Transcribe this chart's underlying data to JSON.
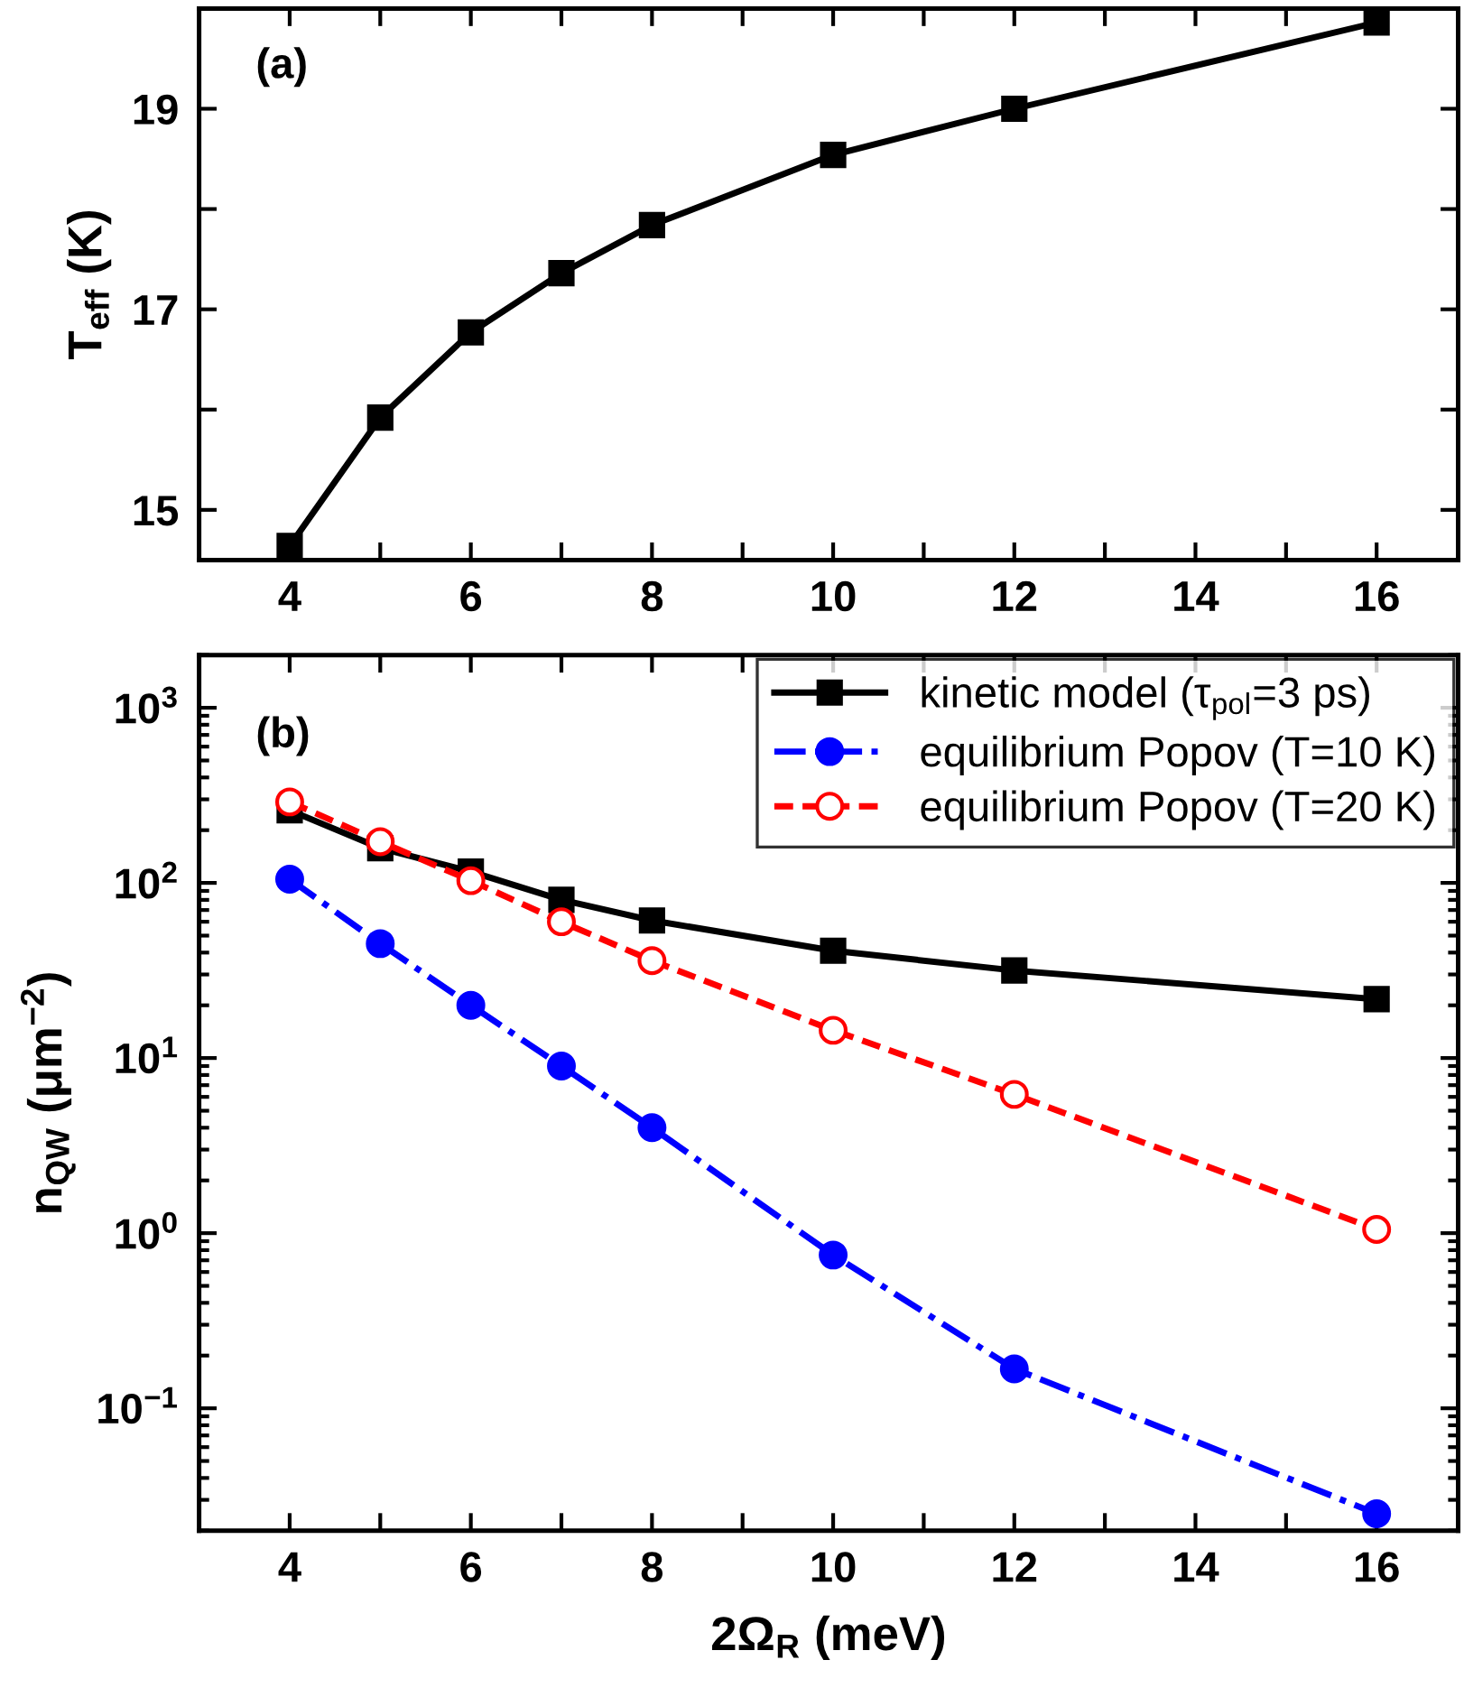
{
  "chart_data": [
    {
      "type": "line",
      "ylabel": "T$_{eff}$ (K)",
      "annotations": [
        "(a)"
      ],
      "x": [
        4,
        5,
        6,
        7,
        8,
        10,
        12,
        16
      ],
      "series": [
        {
          "color": "#000000",
          "marker": "square",
          "line_style": "solid",
          "values": [
            14.64,
            15.92,
            16.77,
            17.36,
            17.84,
            18.54,
            19.0,
            19.86
          ]
        }
      ],
      "xlim": [
        3,
        16.9
      ],
      "xticks": [
        4,
        {
          "value": 5,
          "label": null
        },
        6,
        {
          "value": 7,
          "label": null
        },
        8,
        {
          "value": 9,
          "label": null
        },
        10,
        {
          "value": 11,
          "label": null
        },
        12,
        {
          "value": 13,
          "label": null
        },
        14,
        {
          "value": 15,
          "label": null
        },
        16
      ],
      "ylim": [
        14.5,
        20
      ],
      "yticks": [
        15,
        {
          "value": 16,
          "label": null
        },
        17,
        {
          "value": 18,
          "label": null
        },
        19
      ],
      "grid": false,
      "legend": false
    },
    {
      "type": "line",
      "xlabel": "2Ω$_{R}$ (meV)",
      "ylabel": "n$_{QW}$ (μm$^{−2}$)",
      "annotations": [
        "(b)"
      ],
      "x": [
        4,
        5,
        6,
        7,
        8,
        10,
        12,
        16
      ],
      "series": [
        {
          "name": "kinetic model (τ$_{pol}$=3 ps)",
          "color": "#000000",
          "marker": "square",
          "line_style": "solid",
          "values": [
            260,
            158,
            116,
            80,
            61,
            41,
            31.6,
            21.7
          ]
        },
        {
          "name": "equilibrium Popov (T=10 K)",
          "color": "#0000ff",
          "marker": "circle",
          "line_style": "dashdot",
          "values": [
            105,
            45,
            20,
            9,
            4.0,
            0.75,
            0.168,
            0.025
          ]
        },
        {
          "name": "equilibrium Popov (T=20 K)",
          "color": "#ff0000",
          "marker": "circle",
          "line_style": "dashed",
          "values": [
            290,
            172,
            103,
            60,
            36,
            14.4,
            6.2,
            1.05
          ]
        }
      ],
      "log": "y",
      "xlim": [
        3,
        16.9
      ],
      "xticks": [
        4,
        {
          "value": 5,
          "label": null
        },
        6,
        {
          "value": 7,
          "label": null
        },
        8,
        {
          "value": 9,
          "label": null
        },
        10,
        {
          "value": 11,
          "label": null
        },
        12,
        {
          "value": 13,
          "label": null
        },
        14,
        {
          "value": 15,
          "label": null
        },
        16
      ],
      "ylim": [
        0.02,
        2000
      ],
      "yticks": [
        {
          "value": 0.1,
          "label": "10$^{−1}$"
        },
        {
          "value": 1,
          "label": "10$^{0}$"
        },
        {
          "value": 10,
          "label": "10$^{1}$"
        },
        {
          "value": 100,
          "label": "10$^{2}$"
        },
        {
          "value": 1000,
          "label": "10$^{3}$"
        }
      ],
      "grid": false,
      "legend": "top right"
    }
  ]
}
